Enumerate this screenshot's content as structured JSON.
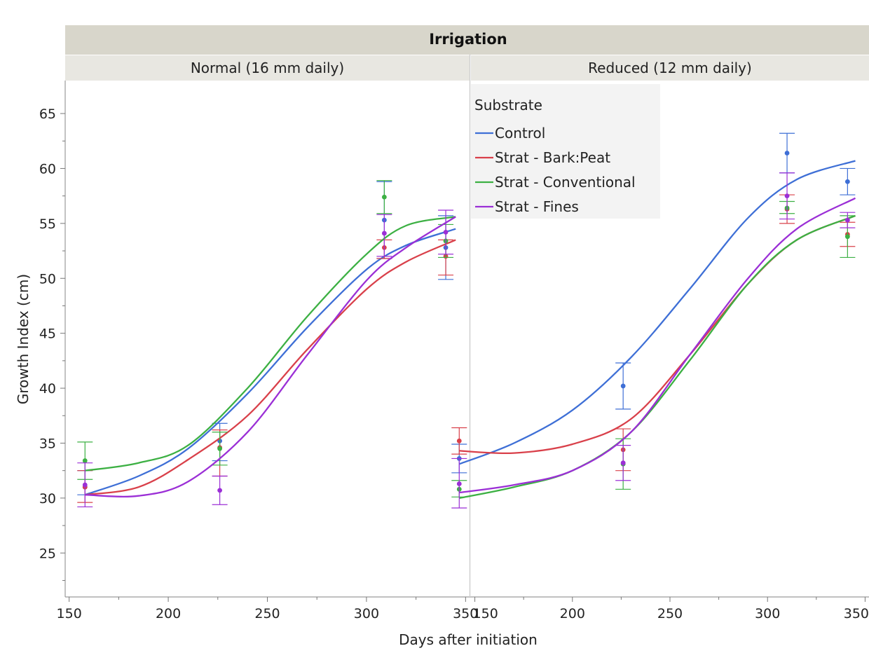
{
  "chart_data": {
    "type": "line",
    "facet_title": "Irrigation",
    "panels": [
      {
        "title": "Normal (16 mm daily)",
        "series": [
          {
            "name": "Control",
            "x": [
              158,
              226,
              309,
              340
            ],
            "y": [
              31.0,
              35.2,
              55.3,
              52.8
            ],
            "err": [
              [
                30.3,
                32.5
              ],
              [
                33.4,
                36.8
              ],
              [
                51.8,
                58.8
              ],
              [
                49.9,
                55.7
              ]
            ],
            "curve_x": [
              158,
              185,
              210,
              240,
              270,
              300,
              320,
              345
            ],
            "curve_y": [
              30.3,
              32.0,
              34.5,
              39.5,
              45.5,
              50.8,
              53.0,
              54.5
            ]
          },
          {
            "name": "Strat - Bark:Peat",
            "x": [
              158,
              226,
              309,
              340
            ],
            "y": [
              31.0,
              34.6,
              52.8,
              52.0
            ],
            "err": [
              [
                29.6,
                32.5
              ],
              [
                32.0,
                36.2
              ],
              [
                51.8,
                53.5
              ],
              [
                50.3,
                53.5
              ]
            ],
            "curve_x": [
              158,
              185,
              210,
              240,
              270,
              300,
              320,
              345
            ],
            "curve_y": [
              30.3,
              31.0,
              33.5,
              37.5,
              43.5,
              49.0,
              51.5,
              53.5
            ]
          },
          {
            "name": "Strat - Conventional",
            "x": [
              158,
              226,
              309,
              340
            ],
            "y": [
              33.4,
              34.5,
              57.4,
              53.4
            ],
            "err": [
              [
                31.7,
                35.1
              ],
              [
                33.0,
                36.0
              ],
              [
                55.9,
                58.9
              ],
              [
                51.9,
                54.9
              ]
            ],
            "curve_x": [
              158,
              185,
              210,
              240,
              270,
              300,
              320,
              345
            ],
            "curve_y": [
              32.5,
              33.2,
              34.8,
              40.0,
              46.5,
              52.2,
              54.8,
              55.6
            ]
          },
          {
            "name": "Strat - Fines",
            "x": [
              158,
              226,
              309,
              340
            ],
            "y": [
              31.2,
              30.7,
              54.1,
              54.2
            ],
            "err": [
              [
                29.2,
                33.2
              ],
              [
                29.4,
                32.0
              ],
              [
                52.0,
                55.8
              ],
              [
                52.2,
                56.2
              ]
            ],
            "curve_x": [
              158,
              185,
              210,
              240,
              270,
              300,
              320,
              345
            ],
            "curve_y": [
              30.3,
              30.2,
              31.5,
              36.0,
              43.0,
              49.8,
              52.8,
              55.6
            ]
          }
        ]
      },
      {
        "title": "Reduced (12 mm daily)",
        "series": [
          {
            "name": "Control",
            "x": [
              142,
              226,
              310,
              341
            ],
            "y": [
              33.6,
              40.2,
              61.4,
              58.8
            ],
            "err": [
              [
                32.3,
                34.9
              ],
              [
                38.1,
                42.3
              ],
              [
                59.6,
                63.2
              ],
              [
                57.6,
                60.0
              ]
            ],
            "curve_x": [
              142,
              170,
              200,
              230,
              260,
              290,
              315,
              345
            ],
            "curve_y": [
              33.1,
              35.0,
              38.0,
              42.8,
              49.0,
              55.5,
              59.0,
              60.7
            ]
          },
          {
            "name": "Strat - Bark:Peat",
            "x": [
              142,
              226,
              310,
              341
            ],
            "y": [
              35.2,
              34.4,
              56.3,
              54.0
            ],
            "err": [
              [
                34.0,
                36.4
              ],
              [
                32.5,
                36.3
              ],
              [
                55.0,
                57.6
              ],
              [
                52.9,
                55.1
              ]
            ],
            "curve_x": [
              142,
              170,
              200,
              230,
              260,
              290,
              315,
              345
            ],
            "curve_y": [
              34.3,
              34.1,
              34.9,
              37.2,
              43.0,
              49.5,
              53.5,
              55.7
            ]
          },
          {
            "name": "Strat - Conventional",
            "x": [
              142,
              226,
              310,
              341
            ],
            "y": [
              30.8,
              33.1,
              56.4,
              53.8
            ],
            "err": [
              [
                30.1,
                31.6
              ],
              [
                30.8,
                35.4
              ],
              [
                55.9,
                57.0
              ],
              [
                51.9,
                55.7
              ]
            ],
            "curve_x": [
              142,
              170,
              200,
              230,
              260,
              290,
              315,
              345
            ],
            "curve_y": [
              30.0,
              31.0,
              32.5,
              36.0,
              42.5,
              49.5,
              53.5,
              55.7
            ]
          },
          {
            "name": "Strat - Fines",
            "x": [
              142,
              226,
              310,
              341
            ],
            "y": [
              31.3,
              33.2,
              57.5,
              55.3
            ],
            "err": [
              [
                29.1,
                33.6
              ],
              [
                31.6,
                34.8
              ],
              [
                55.4,
                59.6
              ],
              [
                54.6,
                56.0
              ]
            ],
            "curve_x": [
              142,
              170,
              200,
              230,
              260,
              290,
              315,
              345
            ],
            "curve_y": [
              30.5,
              31.2,
              32.5,
              36.0,
              43.0,
              50.0,
              54.5,
              57.3
            ]
          }
        ]
      }
    ],
    "xlabel": "Days after initiation",
    "ylabel": "Growth Index (cm)",
    "xlim": [
      148,
      352
    ],
    "ylim": [
      21,
      68
    ],
    "xticks": [
      150,
      200,
      250,
      300,
      350
    ],
    "yticks": [
      25,
      30,
      35,
      40,
      45,
      50,
      55,
      60,
      65
    ],
    "legend": {
      "title": "Substrate",
      "placement": "top-left of right panel",
      "entries": [
        "Control",
        "Strat - Bark:Peat",
        "Strat - Conventional",
        "Strat - Fines"
      ]
    },
    "colors": {
      "Control": "#3e6fd6",
      "Strat - Bark:Peat": "#d9404a",
      "Strat - Conventional": "#3cb043",
      "Strat - Fines": "#9b2fd6"
    },
    "grid": false
  }
}
